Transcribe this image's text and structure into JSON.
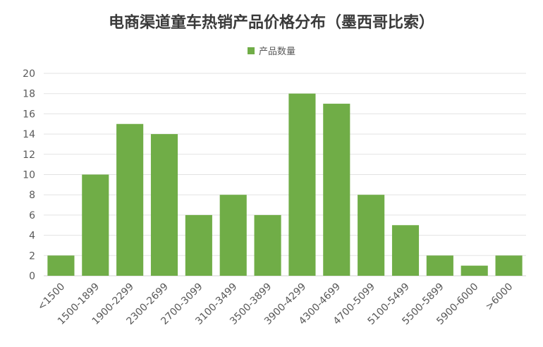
{
  "chart_data": {
    "type": "bar",
    "title": "电商渠道童车热销产品价格分布（墨西哥比索）",
    "categories": [
      "<1500",
      "1500-1899",
      "1900-2299",
      "2300-2699",
      "2700-3099",
      "3100-3499",
      "3500-3899",
      "3900-4299",
      "4300-4699",
      "4700-5099",
      "5100-5499",
      "5500-5899",
      "5900-6000",
      ">6000"
    ],
    "series": [
      {
        "name": "产品数量",
        "values": [
          2,
          10,
          15,
          14,
          6,
          8,
          6,
          18,
          17,
          8,
          5,
          2,
          1,
          2
        ]
      }
    ],
    "y_ticks": [
      0,
      2,
      4,
      6,
      8,
      10,
      12,
      14,
      16,
      18,
      20
    ],
    "ylim": [
      0,
      20
    ],
    "grid": true,
    "legend_position": "top",
    "bar_color": "#70ad47",
    "grid_color": "#e3e3e3"
  }
}
